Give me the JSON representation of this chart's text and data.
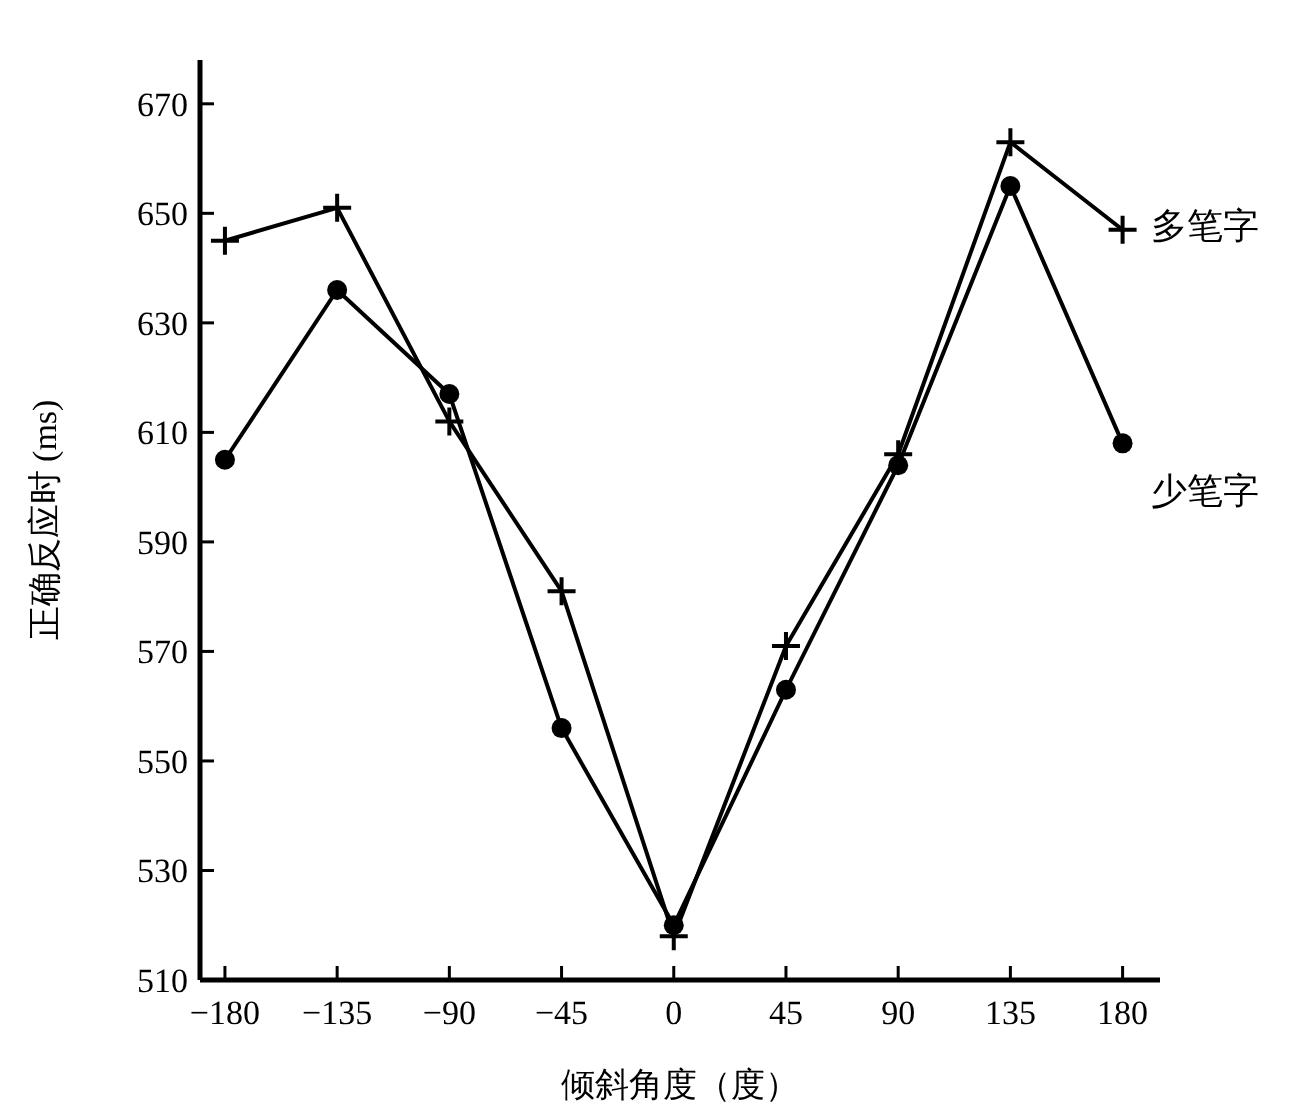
{
  "chart_data": {
    "type": "line",
    "xlabel": "倾斜角度（度）",
    "ylabel": "正确反应时 (ms)",
    "x": [
      -180,
      -135,
      -90,
      -45,
      0,
      45,
      90,
      135,
      180
    ],
    "xlim": [
      -190,
      195
    ],
    "ylim": [
      510,
      678
    ],
    "xticks": [
      {
        "value": -180,
        "label": "−180"
      },
      {
        "value": -135,
        "label": "−135"
      },
      {
        "value": -90,
        "label": "−90"
      },
      {
        "value": -45,
        "label": "−45"
      },
      0,
      45,
      90,
      135,
      180
    ],
    "yticks": [
      510,
      530,
      550,
      570,
      590,
      610,
      630,
      650,
      670
    ],
    "grid": false,
    "legend": false,
    "series": [
      {
        "name": "多笔字",
        "color": "#000000",
        "marker": "cross",
        "values": [
          645,
          651,
          612,
          581,
          518,
          571,
          606,
          663,
          647
        ]
      },
      {
        "name": "少笔字",
        "color": "#000000",
        "marker": "circle",
        "values": [
          605,
          636,
          617,
          556,
          520,
          563,
          604,
          655,
          608
        ]
      }
    ]
  }
}
